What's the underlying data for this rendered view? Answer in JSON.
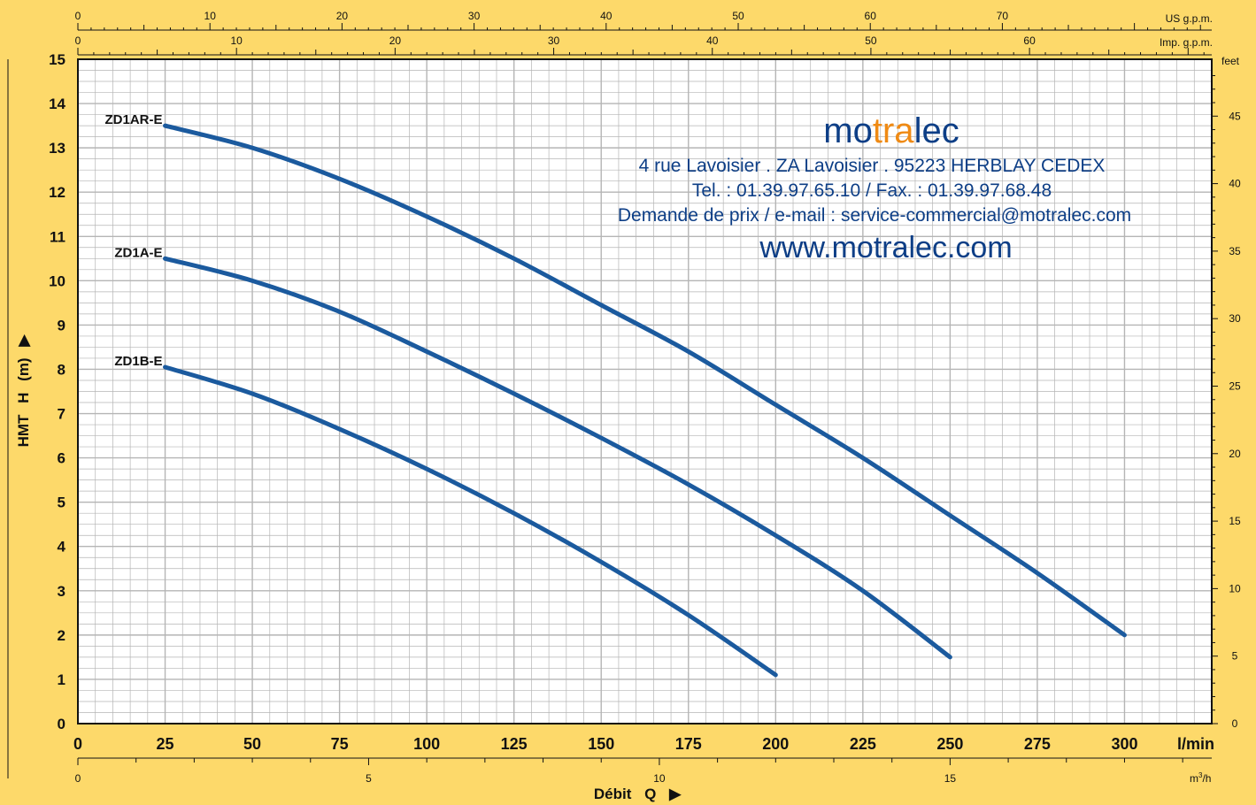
{
  "chart_data": {
    "type": "line",
    "xlabel": "Débit",
    "xlabel_symbol": "Q",
    "x_unit": "l/min",
    "ylabel": "HMT",
    "ylabel_symbol": "H",
    "y_unit": "(m)",
    "xlim": [
      0,
      325
    ],
    "ylim": [
      0,
      15
    ],
    "grid": true,
    "x_ticks": [
      0,
      25,
      50,
      75,
      100,
      125,
      150,
      175,
      200,
      225,
      250,
      275,
      300
    ],
    "y_ticks": [
      0,
      1,
      2,
      3,
      4,
      5,
      6,
      7,
      8,
      9,
      10,
      11,
      12,
      13,
      14,
      15
    ],
    "top_axis_us": {
      "label": "US g.p.m.",
      "ticks": [
        0,
        10,
        20,
        30,
        40,
        50,
        60,
        70
      ]
    },
    "top_axis_imp": {
      "label": "Imp. g.p.m.",
      "ticks": [
        0,
        10,
        20,
        30,
        40,
        50,
        60
      ]
    },
    "right_axis": {
      "label": "feet",
      "ticks": [
        0,
        5,
        10,
        15,
        20,
        25,
        30,
        35,
        40,
        45
      ]
    },
    "bottom_axis_m3h": {
      "label_main": "m",
      "label_sup": "3",
      "label_tail": "/h",
      "ticks": [
        0,
        5,
        10,
        15
      ]
    },
    "series": [
      {
        "name": "ZD1AR-E",
        "x": [
          25,
          50,
          75,
          100,
          125,
          150,
          175,
          200,
          225,
          250,
          275,
          300
        ],
        "y": [
          13.5,
          13.0,
          12.3,
          11.45,
          10.5,
          9.45,
          8.4,
          7.2,
          6.0,
          4.7,
          3.4,
          2.0
        ]
      },
      {
        "name": "ZD1A-E",
        "x": [
          25,
          50,
          75,
          100,
          125,
          150,
          175,
          200,
          225,
          250
        ],
        "y": [
          10.5,
          10.0,
          9.3,
          8.4,
          7.45,
          6.45,
          5.4,
          4.25,
          3.0,
          1.5
        ]
      },
      {
        "name": "ZD1B-E",
        "x": [
          25,
          50,
          75,
          100,
          125,
          150,
          175,
          200
        ],
        "y": [
          8.05,
          7.45,
          6.65,
          5.75,
          4.75,
          3.65,
          2.45,
          1.1
        ]
      }
    ],
    "line_color": "#1b5a9e"
  },
  "branding": {
    "name_pre": "mo",
    "name_hl": "tra",
    "name_post": "lec",
    "address": "4 rue Lavoisier . ZA Lavoisier . 95223 HERBLAY CEDEX",
    "phone": "Tel. : 01.39.97.65.10 / Fax. : 01.39.97.68.48",
    "email": "Demande de prix / e-mail : service-commercial@motralec.com",
    "website": "www.motralec.com",
    "color": "#0d3e86",
    "highlight_color": "#ef8a14"
  },
  "colors": {
    "background": "#fdd96a",
    "plot_area": "#ffffff",
    "grid": "#b5b5b5"
  }
}
